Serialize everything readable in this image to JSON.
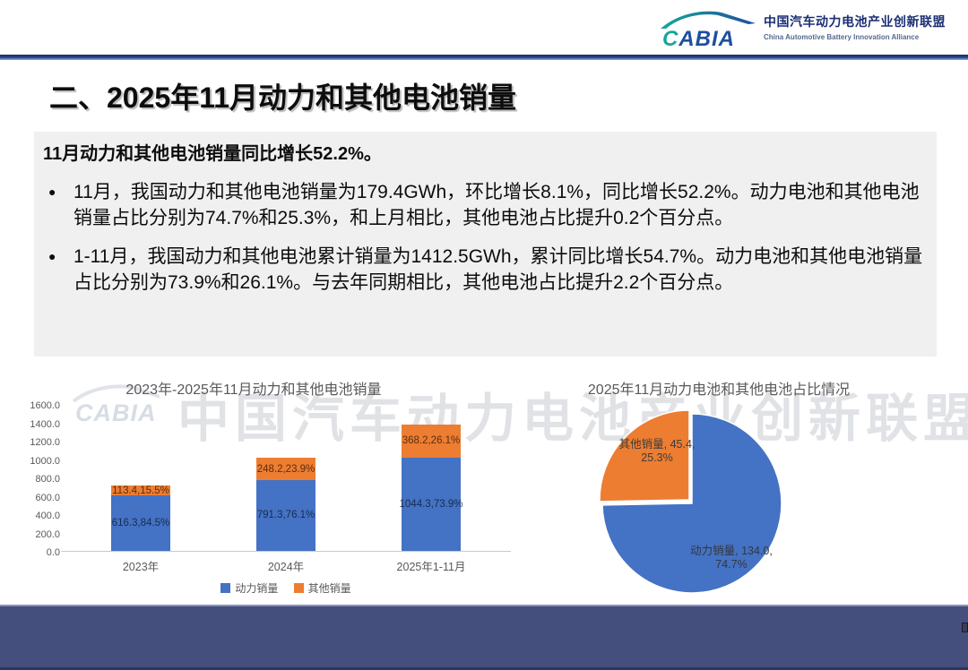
{
  "header": {
    "logo": {
      "brand": "CABIA",
      "org_cn": "中国汽车动力电池产业创新联盟",
      "org_en": "China Automotive Battery Innovation Alliance"
    }
  },
  "slide": {
    "title": "二、2025年11月动力和其他电池销量",
    "headline": "11月动力和其他电池销量同比增长52.2%。",
    "bullet_glyph": "●",
    "bullets": [
      "11月，我国动力和其他电池销量为179.4GWh，环比增长8.1%，同比增长52.2%。动力电池和其他电池销量占比分别为74.7%和25.3%，和上月相比，其他电池占比提升0.2个百分点。",
      "1-11月，我国动力和其他电池累计销量为1412.5GWh，累计同比增长54.7%。动力电池和其他电池销量占比分别为73.9%和26.1%。与去年同期相比，其他电池占比提升2.2个百分点。"
    ]
  },
  "watermark": {
    "brand": "CABIA",
    "text": "中国汽车动力电池产业创新联盟"
  },
  "chart_data": [
    {
      "type": "bar",
      "stacked": true,
      "title": "2023年-2025年11月动力和其他电池销量",
      "categories": [
        "2023年",
        "2024年",
        "2025年1-11月"
      ],
      "series": [
        {
          "name": "动力销量",
          "color": "#4472C4",
          "values": [
            616.3,
            791.3,
            1044.3
          ],
          "labels": [
            "616.3,84.5%",
            "791.3,76.1%",
            "1044.3,73.9%"
          ]
        },
        {
          "name": "其他销量",
          "color": "#ED7D31",
          "values": [
            113.4,
            248.2,
            368.2
          ],
          "labels": [
            "113.4,15.5%",
            "248.2,23.9%",
            "368.2,26.1%"
          ]
        }
      ],
      "ylim": [
        0,
        1600
      ],
      "ytick_step": 200,
      "yticks": [
        "1600.0",
        "1400.0",
        "1200.0",
        "1000.0",
        "800.0",
        "600.0",
        "400.0",
        "200.0",
        "0.0"
      ],
      "legend": [
        "动力销量",
        "其他销量"
      ],
      "legend_position": "bottom",
      "grid": false
    },
    {
      "type": "pie",
      "title": "2025年11月动力电池和其他电池占比情况",
      "direction": "clockwise",
      "start_angle_deg": 0,
      "exploded_slice": "其他销量",
      "slices": [
        {
          "name": "动力销量",
          "value": 134.0,
          "pct": 74.7,
          "color": "#4472C4",
          "label_lines": [
            "动力销量, 134.0,",
            "74.7%"
          ]
        },
        {
          "name": "其他销量",
          "value": 45.4,
          "pct": 25.3,
          "color": "#ED7D31",
          "label_lines": [
            "其他销量, 45.4,",
            "25.3%"
          ]
        }
      ]
    }
  ],
  "colors": {
    "power_blue": "#4472C4",
    "other_orange": "#ED7D31",
    "footer_navy": "#454F7D",
    "panel_gray": "#F0F0F0",
    "chart_text": "#595959",
    "brand_navy": "#1B2F73",
    "brand_teal": "#17A69B",
    "watermark_gray": "#CCD0D7"
  }
}
